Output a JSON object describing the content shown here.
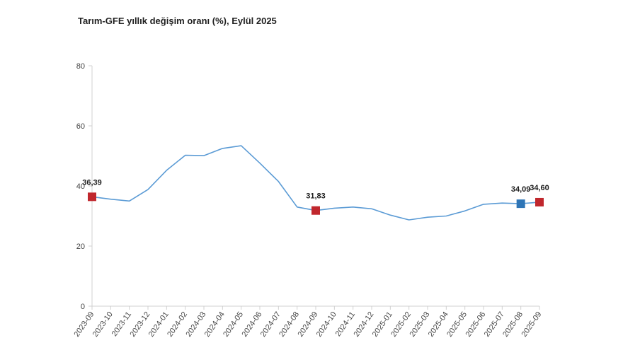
{
  "chart_data": {
    "type": "line",
    "title": "Tarım-GFE yıllık değişim oranı (%), Eylül 2025",
    "xlabel": "",
    "ylabel": "",
    "ylim": [
      0,
      80
    ],
    "yticks": [
      0,
      20,
      40,
      60,
      80
    ],
    "grid": false,
    "categories": [
      "2023-09",
      "2023-10",
      "2023-11",
      "2023-12",
      "2024-01",
      "2024-02",
      "2024-03",
      "2024-04",
      "2024-05",
      "2024-06",
      "2024-07",
      "2024-08",
      "2024-09",
      "2024-10",
      "2024-11",
      "2024-12",
      "2025-01",
      "2025-02",
      "2025-03",
      "2025-04",
      "2025-05",
      "2025-06",
      "2025-07",
      "2025-08",
      "2025-09"
    ],
    "series": [
      {
        "values": [
          36.39,
          35.6,
          35.0,
          38.8,
          45.2,
          50.2,
          50.1,
          52.5,
          53.4,
          47.6,
          41.5,
          33.0,
          31.83,
          32.6,
          33.0,
          32.4,
          30.3,
          28.7,
          29.6,
          30.0,
          31.7,
          33.9,
          34.3,
          34.09,
          34.6
        ],
        "color": "#5b9bd5"
      }
    ],
    "highlights": [
      {
        "index": 0,
        "label": "36,39",
        "color": "#c0272d"
      },
      {
        "index": 12,
        "label": "31,83",
        "color": "#c0272d"
      },
      {
        "index": 23,
        "label": "34,09",
        "color": "#2e75b6"
      },
      {
        "index": 24,
        "label": "34,60",
        "color": "#c0272d"
      }
    ]
  }
}
